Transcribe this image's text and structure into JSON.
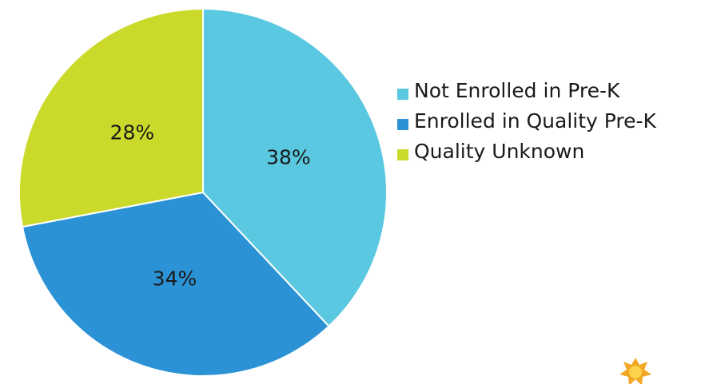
{
  "chart_data": {
    "type": "pie",
    "categories": [
      "Not Enrolled in Pre-K",
      "Enrolled in Quality Pre-K",
      "Quality Unknown"
    ],
    "values": [
      38,
      34,
      28
    ],
    "value_labels": [
      "38%",
      "34%",
      "28%"
    ],
    "colors": [
      "#5ac8e0",
      "#2b93d5",
      "#cbd92b"
    ]
  }
}
